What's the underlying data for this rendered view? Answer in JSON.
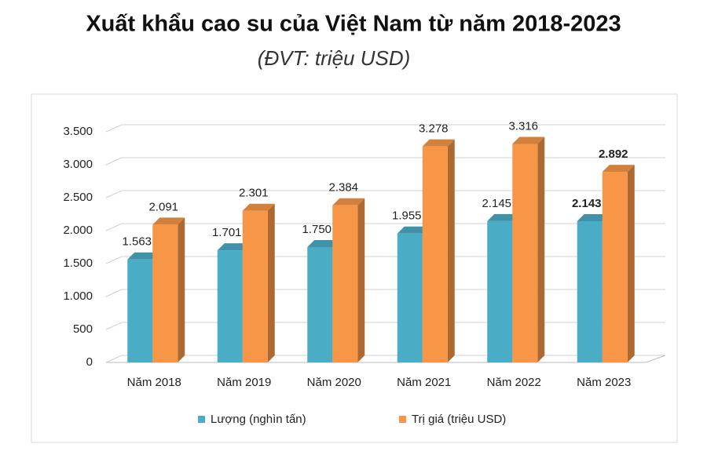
{
  "chart_data": {
    "type": "bar",
    "title": "Xuất khẩu cao su của Việt Nam từ năm 2018-2023",
    "subtitle": "(ĐVT: triệu USD)",
    "categories": [
      "Năm 2018",
      "Năm 2019",
      "Năm 2020",
      "Năm 2021",
      "Năm 2022",
      "Năm 2023"
    ],
    "series": [
      {
        "name": "Lượng (nghìn tấn)",
        "color": "#4bacc6",
        "values": [
          1563,
          1701,
          1750,
          1955,
          2145,
          2143
        ],
        "value_labels": [
          "1.563",
          "1.701",
          "1.750",
          "1.955",
          "2.145",
          "2.143"
        ]
      },
      {
        "name": "Trị giá (triệu USD)",
        "color": "#f79646",
        "values": [
          2091,
          2301,
          2384,
          3278,
          3316,
          2892
        ],
        "value_labels": [
          "2.091",
          "2.301",
          "2.384",
          "3.278",
          "3.316",
          "2.892"
        ]
      }
    ],
    "ylim": [
      0,
      3500
    ],
    "yticks": [
      0,
      500,
      {
        "value": 1000,
        "label": "1.000"
      },
      {
        "value": 1500,
        "label": "1.500"
      },
      {
        "value": 2000,
        "label": "2.000"
      },
      {
        "value": 2500,
        "label": "2.500"
      },
      {
        "value": 3000,
        "label": "3.000"
      },
      {
        "value": 3500,
        "label": "3.500"
      }
    ],
    "grid": true,
    "legend": "bottom"
  }
}
